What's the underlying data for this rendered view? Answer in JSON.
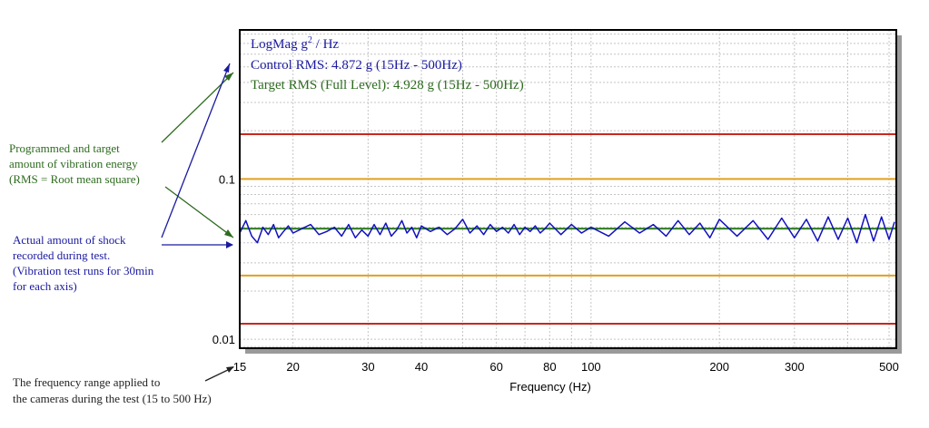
{
  "chart_data": {
    "type": "line",
    "title_lines": [
      {
        "base": "LogMag g",
        "sup": "2",
        "tail": " / Hz",
        "color": "#1a1aa0"
      },
      {
        "text": "Control RMS: 4.872 g (15Hz - 500Hz)",
        "color": "#1a1aa0"
      },
      {
        "text": "Target RMS (Full Level): 4.928 g (15Hz - 500Hz)",
        "color": "#2e6b1f"
      }
    ],
    "xlabel": "Frequency (Hz)",
    "ylabel": "",
    "x_scale": "log",
    "y_scale": "log",
    "xlim": [
      15,
      520
    ],
    "ylim": [
      0.0088,
      0.85
    ],
    "x_ticks": [
      15,
      20,
      30,
      40,
      60,
      80,
      100,
      200,
      300,
      500
    ],
    "x_tick_labels": [
      "15",
      "20",
      "30",
      "40",
      "60",
      "80",
      "100",
      "200",
      "300",
      "500"
    ],
    "y_ticks": [
      0.1,
      0.01
    ],
    "y_tick_labels": [
      "0.1",
      "0.01"
    ],
    "grid": true,
    "reference_lines": [
      {
        "name": "upper abort",
        "value": 0.19,
        "color": "#c8281e"
      },
      {
        "name": "upper alarm",
        "value": 0.1,
        "color": "#e0a020"
      },
      {
        "name": "lower alarm",
        "value": 0.025,
        "color": "#e0a020"
      },
      {
        "name": "lower abort",
        "value": 0.0125,
        "color": "#c8281e"
      },
      {
        "name": "target profile",
        "value": 0.049,
        "color": "#2e7d1f"
      }
    ],
    "series": [
      {
        "color": "#1010c0",
        "x": [
          15,
          15.5,
          16,
          16.5,
          17,
          17.5,
          18,
          18.5,
          19,
          19.5,
          20,
          21,
          22,
          23,
          24,
          25,
          26,
          27,
          28,
          29,
          30,
          31,
          32,
          33,
          34,
          35,
          36,
          37,
          38,
          39,
          40,
          42,
          44,
          46,
          48,
          50,
          52,
          54,
          56,
          58,
          60,
          62,
          64,
          66,
          68,
          70,
          72,
          74,
          76,
          78,
          80,
          85,
          90,
          95,
          100,
          110,
          120,
          130,
          140,
          150,
          160,
          170,
          180,
          190,
          200,
          220,
          240,
          260,
          280,
          300,
          320,
          340,
          360,
          380,
          400,
          420,
          440,
          460,
          480,
          500,
          515
        ],
        "values": [
          0.046,
          0.055,
          0.044,
          0.04,
          0.05,
          0.045,
          0.052,
          0.043,
          0.047,
          0.051,
          0.046,
          0.049,
          0.052,
          0.045,
          0.047,
          0.05,
          0.044,
          0.052,
          0.043,
          0.048,
          0.044,
          0.052,
          0.045,
          0.053,
          0.044,
          0.048,
          0.055,
          0.046,
          0.05,
          0.043,
          0.051,
          0.047,
          0.05,
          0.045,
          0.049,
          0.056,
          0.046,
          0.051,
          0.045,
          0.052,
          0.047,
          0.05,
          0.046,
          0.052,
          0.045,
          0.05,
          0.047,
          0.051,
          0.046,
          0.049,
          0.053,
          0.045,
          0.052,
          0.046,
          0.05,
          0.044,
          0.054,
          0.046,
          0.052,
          0.044,
          0.055,
          0.045,
          0.053,
          0.043,
          0.056,
          0.044,
          0.055,
          0.042,
          0.057,
          0.043,
          0.056,
          0.041,
          0.058,
          0.042,
          0.057,
          0.04,
          0.06,
          0.041,
          0.058,
          0.042,
          0.054
        ]
      }
    ]
  },
  "annotations": {
    "energy": {
      "lines": [
        "Programmed and target",
        "amount of vibration energy",
        "(RMS = Root mean square)"
      ],
      "color": "#2e6b1f"
    },
    "shock": {
      "lines": [
        "Actual amount of shock",
        "recorded during test.",
        "(Vibration test runs for 30min",
        "for each axis)"
      ],
      "color": "#1a1aa0"
    },
    "range": {
      "lines": [
        "The frequency range applied to",
        "the cameras during the test (15 to 500 Hz)"
      ],
      "color": "#222222"
    }
  }
}
